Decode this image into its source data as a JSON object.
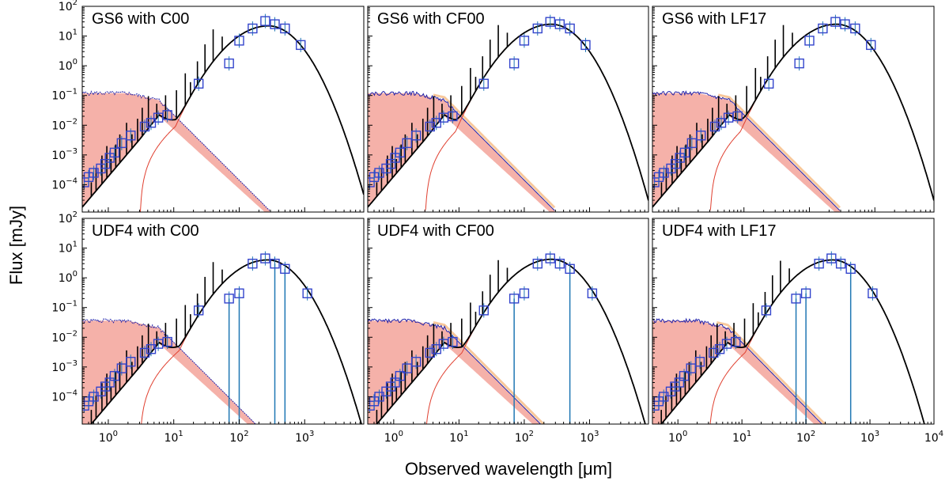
{
  "figure": {
    "xlabel": "Observed wavelength [μm]",
    "ylabel": "Flux [mJy]"
  },
  "colors": {
    "total_sed": "#000000",
    "observed": "#3344cc",
    "errorbar": "#1f77b4",
    "stellar_unattenuated": "#2222aa",
    "attenuated_fill": "#f4a8a0",
    "orange_band": "#f5b070",
    "dust_emission": "#e04030"
  },
  "chart_data": [
    {
      "type": "line",
      "title": "GS6 with C00",
      "xscale": "log",
      "yscale": "log",
      "xlim": [
        0.4,
        8000
      ],
      "ylim": [
        1.2e-05,
        100
      ],
      "xticks": [
        "10^0",
        "10^1",
        "10^2",
        "10^3"
      ],
      "yticks": [
        "10^-4",
        "10^-3",
        "10^-2",
        "10^-1",
        "10^0",
        "10^1",
        "10^2"
      ],
      "observed_points": [
        [
          0.43,
          0.00012
        ],
        [
          0.5,
          0.00018
        ],
        [
          0.6,
          0.00025
        ],
        [
          0.77,
          0.00035
        ],
        [
          0.9,
          0.0005
        ],
        [
          1.05,
          0.0008
        ],
        [
          1.25,
          0.0012
        ],
        [
          1.6,
          0.0025
        ],
        [
          2.2,
          0.0045
        ],
        [
          3.6,
          0.009
        ],
        [
          4.5,
          0.012
        ],
        [
          5.8,
          0.018
        ],
        [
          8,
          0.022
        ],
        [
          24,
          0.25
        ],
        [
          70,
          1.2
        ],
        [
          100,
          7
        ],
        [
          160,
          18
        ],
        [
          250,
          32
        ],
        [
          350,
          25
        ],
        [
          500,
          18
        ],
        [
          870,
          5
        ]
      ],
      "upper_limit_wavelengths": [],
      "stellar_peak_mjy": 0.02,
      "dust_peak_mjy": 22,
      "dust_peak_um": 280,
      "model": "C00"
    },
    {
      "type": "line",
      "title": "GS6 with CF00",
      "xscale": "log",
      "yscale": "log",
      "xlim": [
        0.4,
        8000
      ],
      "ylim": [
        1.2e-05,
        100
      ],
      "xticks": [
        "10^0",
        "10^1",
        "10^2",
        "10^3"
      ],
      "yticks": [],
      "observed_points": [
        [
          0.43,
          0.00012
        ],
        [
          0.5,
          0.00018
        ],
        [
          0.6,
          0.00025
        ],
        [
          0.77,
          0.00035
        ],
        [
          0.9,
          0.0005
        ],
        [
          1.05,
          0.0008
        ],
        [
          1.25,
          0.0012
        ],
        [
          1.6,
          0.0025
        ],
        [
          2.2,
          0.0045
        ],
        [
          3.6,
          0.009
        ],
        [
          4.5,
          0.012
        ],
        [
          5.8,
          0.018
        ],
        [
          8,
          0.02
        ],
        [
          24,
          0.25
        ],
        [
          70,
          1.2
        ],
        [
          100,
          7
        ],
        [
          160,
          18
        ],
        [
          250,
          30
        ],
        [
          350,
          25
        ],
        [
          500,
          18
        ],
        [
          870,
          5
        ]
      ],
      "upper_limit_wavelengths": [],
      "stellar_peak_mjy": 0.02,
      "dust_peak_mjy": 25,
      "dust_peak_um": 260,
      "model": "CF00"
    },
    {
      "type": "line",
      "title": "GS6 with LF17",
      "xscale": "log",
      "yscale": "log",
      "xlim": [
        0.4,
        8000
      ],
      "ylim": [
        1.2e-05,
        100
      ],
      "xticks": [
        "10^0",
        "10^1",
        "10^2",
        "10^3"
      ],
      "yticks": [],
      "observed_points": [
        [
          0.43,
          0.00012
        ],
        [
          0.5,
          0.00018
        ],
        [
          0.6,
          0.00025
        ],
        [
          0.77,
          0.00035
        ],
        [
          0.9,
          0.0005
        ],
        [
          1.05,
          0.0008
        ],
        [
          1.25,
          0.0012
        ],
        [
          1.6,
          0.0025
        ],
        [
          2.2,
          0.0045
        ],
        [
          3.6,
          0.009
        ],
        [
          4.5,
          0.012
        ],
        [
          5.8,
          0.018
        ],
        [
          8,
          0.02
        ],
        [
          24,
          0.25
        ],
        [
          70,
          1.2
        ],
        [
          100,
          7
        ],
        [
          160,
          18
        ],
        [
          250,
          30
        ],
        [
          350,
          25
        ],
        [
          500,
          18
        ],
        [
          870,
          5
        ]
      ],
      "upper_limit_wavelengths": [],
      "stellar_peak_mjy": 0.02,
      "dust_peak_mjy": 25,
      "dust_peak_um": 260,
      "model": "LF17"
    },
    {
      "type": "line",
      "title": "UDF4 with C00",
      "xscale": "log",
      "yscale": "log",
      "xlim": [
        0.4,
        8000
      ],
      "ylim": [
        1.2e-05,
        100
      ],
      "xticks": [
        "10^0",
        "10^1",
        "10^2",
        "10^3"
      ],
      "yticks": [
        "10^-4",
        "10^-3",
        "10^-2",
        "10^-1",
        "10^0",
        "10^1",
        "10^2"
      ],
      "observed_points": [
        [
          0.43,
          5e-05
        ],
        [
          0.5,
          7e-05
        ],
        [
          0.6,
          0.0001
        ],
        [
          0.77,
          0.00015
        ],
        [
          0.9,
          0.00022
        ],
        [
          1.05,
          0.0003
        ],
        [
          1.25,
          0.0005
        ],
        [
          1.6,
          0.0009
        ],
        [
          2.2,
          0.0015
        ],
        [
          3.6,
          0.003
        ],
        [
          4.5,
          0.004
        ],
        [
          5.8,
          0.006
        ],
        [
          8,
          0.007
        ],
        [
          24,
          0.08
        ],
        [
          70,
          0.2
        ],
        [
          100,
          0.3
        ],
        [
          160,
          3
        ],
        [
          250,
          4.5
        ],
        [
          350,
          3
        ],
        [
          500,
          2
        ],
        [
          1100,
          0.3
        ]
      ],
      "upper_limit_wavelengths": [
        70,
        100,
        350,
        500
      ],
      "stellar_peak_mjy": 0.006,
      "dust_peak_mjy": 4,
      "dust_peak_um": 270,
      "model": "C00"
    },
    {
      "type": "line",
      "title": "UDF4 with CF00",
      "xscale": "log",
      "yscale": "log",
      "xlim": [
        0.4,
        8000
      ],
      "ylim": [
        1.2e-05,
        100
      ],
      "xticks": [
        "10^0",
        "10^1",
        "10^2",
        "10^3"
      ],
      "yticks": [],
      "observed_points": [
        [
          0.43,
          5e-05
        ],
        [
          0.5,
          7e-05
        ],
        [
          0.6,
          0.0001
        ],
        [
          0.77,
          0.00015
        ],
        [
          0.9,
          0.00022
        ],
        [
          1.05,
          0.0003
        ],
        [
          1.25,
          0.0005
        ],
        [
          1.6,
          0.0009
        ],
        [
          2.2,
          0.0015
        ],
        [
          3.6,
          0.003
        ],
        [
          4.5,
          0.004
        ],
        [
          5.8,
          0.006
        ],
        [
          8,
          0.007
        ],
        [
          24,
          0.08
        ],
        [
          70,
          0.2
        ],
        [
          100,
          0.3
        ],
        [
          160,
          3
        ],
        [
          250,
          4.5
        ],
        [
          350,
          3
        ],
        [
          500,
          2
        ],
        [
          1100,
          0.3
        ]
      ],
      "upper_limit_wavelengths": [
        70,
        500
      ],
      "stellar_peak_mjy": 0.006,
      "dust_peak_mjy": 4.2,
      "dust_peak_um": 260,
      "model": "CF00"
    },
    {
      "type": "line",
      "title": "UDF4 with LF17",
      "xscale": "log",
      "yscale": "log",
      "xlim": [
        0.4,
        10000
      ],
      "ylim": [
        1.2e-05,
        100
      ],
      "xticks": [
        "10^0",
        "10^1",
        "10^2",
        "10^3",
        "10^4"
      ],
      "yticks": [],
      "observed_points": [
        [
          0.43,
          5e-05
        ],
        [
          0.5,
          7e-05
        ],
        [
          0.6,
          0.0001
        ],
        [
          0.77,
          0.00015
        ],
        [
          0.9,
          0.00022
        ],
        [
          1.05,
          0.0003
        ],
        [
          1.25,
          0.0005
        ],
        [
          1.6,
          0.0009
        ],
        [
          2.2,
          0.0015
        ],
        [
          3.6,
          0.003
        ],
        [
          4.5,
          0.004
        ],
        [
          5.8,
          0.006
        ],
        [
          8,
          0.007
        ],
        [
          24,
          0.08
        ],
        [
          70,
          0.2
        ],
        [
          100,
          0.3
        ],
        [
          160,
          3
        ],
        [
          250,
          4.5
        ],
        [
          350,
          3
        ],
        [
          500,
          2
        ],
        [
          1100,
          0.3
        ]
      ],
      "upper_limit_wavelengths": [
        70,
        100,
        500
      ],
      "stellar_peak_mjy": 0.006,
      "dust_peak_mjy": 4,
      "dust_peak_um": 260,
      "model": "LF17"
    }
  ]
}
